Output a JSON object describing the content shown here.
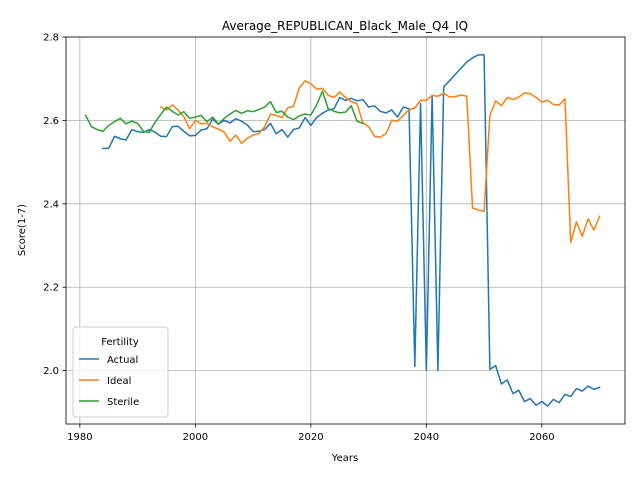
{
  "chart_data": {
    "type": "line",
    "title": "Average_REPUBLICAN_Black_Male_Q4_IQ",
    "xlabel": "Years",
    "ylabel": "Score(1-7)",
    "xlim": [
      1977.6,
      2074.4
    ],
    "ylim": [
      1.872,
      2.8
    ],
    "xticks": [
      1980,
      2000,
      2020,
      2040,
      2060
    ],
    "yticks": [
      2.0,
      2.2,
      2.4,
      2.6,
      2.8
    ],
    "xtick_labels": [
      "1980",
      "2000",
      "2020",
      "2040",
      "2060"
    ],
    "ytick_labels": [
      "2.0",
      "2.2",
      "2.4",
      "2.6",
      "2.8"
    ],
    "grid": true,
    "legend": {
      "title": "Fertility",
      "placement": "lower-left"
    },
    "series": [
      {
        "name": "Actual",
        "color": "#1f77b4",
        "x": [
          1984,
          1985,
          1986,
          1987,
          1988,
          1989,
          1990,
          1991,
          1992,
          1993,
          1994,
          1995,
          1996,
          1997,
          1998,
          1999,
          2000,
          2001,
          2002,
          2003,
          2004,
          2005,
          2006,
          2007,
          2008,
          2009,
          2010,
          2011,
          2012,
          2013,
          2014,
          2015,
          2016,
          2017,
          2018,
          2019,
          2020,
          2021,
          2022,
          2023,
          2024,
          2025,
          2026,
          2027,
          2028,
          2029,
          2030,
          2031,
          2032,
          2033,
          2034,
          2035,
          2036,
          2037,
          2038,
          2039,
          2040,
          2041,
          2042,
          2043,
          2044,
          2045,
          2046,
          2047,
          2048,
          2049,
          2050,
          2051,
          2052,
          2053,
          2054,
          2055,
          2056,
          2057,
          2058,
          2059,
          2060,
          2061,
          2062,
          2063,
          2064,
          2065,
          2066,
          2067,
          2068,
          2069,
          2070
        ],
        "y": [
          2.533,
          2.533,
          2.562,
          2.556,
          2.553,
          2.578,
          2.573,
          2.571,
          2.578,
          2.572,
          2.562,
          2.561,
          2.585,
          2.586,
          2.574,
          2.563,
          2.564,
          2.577,
          2.58,
          2.603,
          2.591,
          2.6,
          2.594,
          2.604,
          2.598,
          2.589,
          2.573,
          2.574,
          2.578,
          2.593,
          2.568,
          2.578,
          2.56,
          2.578,
          2.582,
          2.607,
          2.588,
          2.607,
          2.617,
          2.625,
          2.628,
          2.655,
          2.648,
          2.653,
          2.647,
          2.65,
          2.632,
          2.635,
          2.622,
          2.618,
          2.625,
          2.608,
          2.632,
          2.628,
          2.01,
          2.64,
          2.0,
          2.66,
          2.0,
          2.68,
          2.695,
          2.71,
          2.725,
          2.74,
          2.75,
          2.757,
          2.757,
          2.003,
          2.012,
          1.968,
          1.978,
          1.945,
          1.953,
          1.926,
          1.933,
          1.917,
          1.926,
          1.915,
          1.931,
          1.923,
          1.943,
          1.938,
          1.957,
          1.951,
          1.963,
          1.955,
          1.96
        ]
      },
      {
        "name": "Ideal",
        "color": "#ff7f0e",
        "x": [
          1994,
          1995,
          1996,
          1997,
          1998,
          1999,
          2000,
          2001,
          2002,
          2003,
          2004,
          2005,
          2006,
          2007,
          2008,
          2009,
          2010,
          2011,
          2012,
          2013,
          2014,
          2015,
          2016,
          2017,
          2018,
          2019,
          2020,
          2021,
          2022,
          2023,
          2024,
          2025,
          2026,
          2027,
          2028,
          2029,
          2030,
          2031,
          2032,
          2033,
          2034,
          2035,
          2036,
          2037,
          2038,
          2039,
          2040,
          2041,
          2042,
          2043,
          2044,
          2045,
          2046,
          2047,
          2048,
          2049,
          2050,
          2051,
          2052,
          2053,
          2054,
          2055,
          2056,
          2057,
          2058,
          2059,
          2060,
          2061,
          2062,
          2063,
          2064,
          2065,
          2066,
          2067,
          2068,
          2069,
          2070
        ],
        "y": [
          2.632,
          2.625,
          2.637,
          2.625,
          2.609,
          2.58,
          2.6,
          2.592,
          2.593,
          2.585,
          2.579,
          2.572,
          2.55,
          2.565,
          2.545,
          2.557,
          2.565,
          2.569,
          2.585,
          2.615,
          2.612,
          2.607,
          2.63,
          2.634,
          2.678,
          2.695,
          2.688,
          2.675,
          2.677,
          2.66,
          2.655,
          2.668,
          2.655,
          2.645,
          2.64,
          2.595,
          2.585,
          2.562,
          2.56,
          2.568,
          2.6,
          2.598,
          2.612,
          2.625,
          2.63,
          2.648,
          2.648,
          2.66,
          2.658,
          2.665,
          2.656,
          2.657,
          2.661,
          2.658,
          2.39,
          2.385,
          2.382,
          2.612,
          2.647,
          2.635,
          2.655,
          2.65,
          2.656,
          2.666,
          2.664,
          2.655,
          2.644,
          2.648,
          2.638,
          2.637,
          2.652,
          2.307,
          2.357,
          2.322,
          2.364,
          2.337,
          2.37
        ]
      },
      {
        "name": "Sterile",
        "color": "#2ca02c",
        "x": [
          1981,
          1982,
          1983,
          1984,
          1985,
          1986,
          1987,
          1988,
          1989,
          1990,
          1991,
          1992,
          1993,
          1994,
          1995,
          1996,
          1997,
          1998,
          1999,
          2000,
          2001,
          2002,
          2003,
          2004,
          2005,
          2006,
          2007,
          2008,
          2009,
          2010,
          2011,
          2012,
          2013,
          2014,
          2015,
          2016,
          2017,
          2018,
          2019,
          2020,
          2021,
          2022,
          2023,
          2024,
          2025,
          2026,
          2027,
          2028,
          2029
        ],
        "y": [
          2.612,
          2.585,
          2.578,
          2.574,
          2.588,
          2.597,
          2.605,
          2.592,
          2.598,
          2.593,
          2.574,
          2.571,
          2.595,
          2.614,
          2.632,
          2.622,
          2.613,
          2.621,
          2.605,
          2.608,
          2.612,
          2.597,
          2.608,
          2.591,
          2.605,
          2.615,
          2.624,
          2.617,
          2.623,
          2.621,
          2.626,
          2.632,
          2.645,
          2.619,
          2.622,
          2.608,
          2.602,
          2.611,
          2.615,
          2.613,
          2.637,
          2.67,
          2.628,
          2.622,
          2.618,
          2.62,
          2.635,
          2.598,
          2.593
        ]
      }
    ]
  }
}
